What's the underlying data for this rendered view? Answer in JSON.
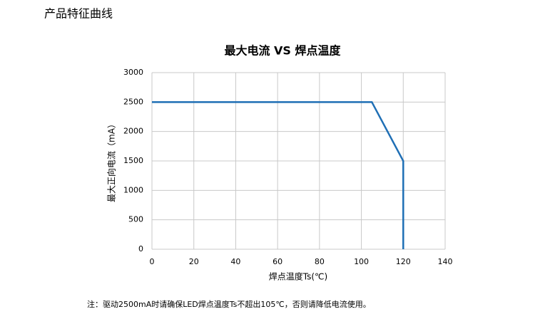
{
  "header": {
    "title": "产品特征曲线"
  },
  "chart_data": {
    "type": "line",
    "title": "最大电流 VS 焊点温度",
    "x_label": "焊点温度Ts(℃)",
    "y_label": "最大正向电流（mA）",
    "x": [
      0,
      105,
      120,
      120
    ],
    "values": [
      2500,
      2500,
      1500,
      0
    ],
    "color": "#1f6fb5",
    "xlim": [
      0,
      140
    ],
    "xticks": [
      0,
      20,
      40,
      60,
      80,
      100,
      120,
      140
    ],
    "ylim": [
      0,
      3000
    ],
    "yticks": [
      0,
      500,
      1000,
      1500,
      2000,
      2500,
      3000
    ],
    "grid": true
  },
  "footer": {
    "note": "注：驱动2500mA时请确保LED焊点温度Ts不超出105℃，否则请降低电流使用。"
  }
}
